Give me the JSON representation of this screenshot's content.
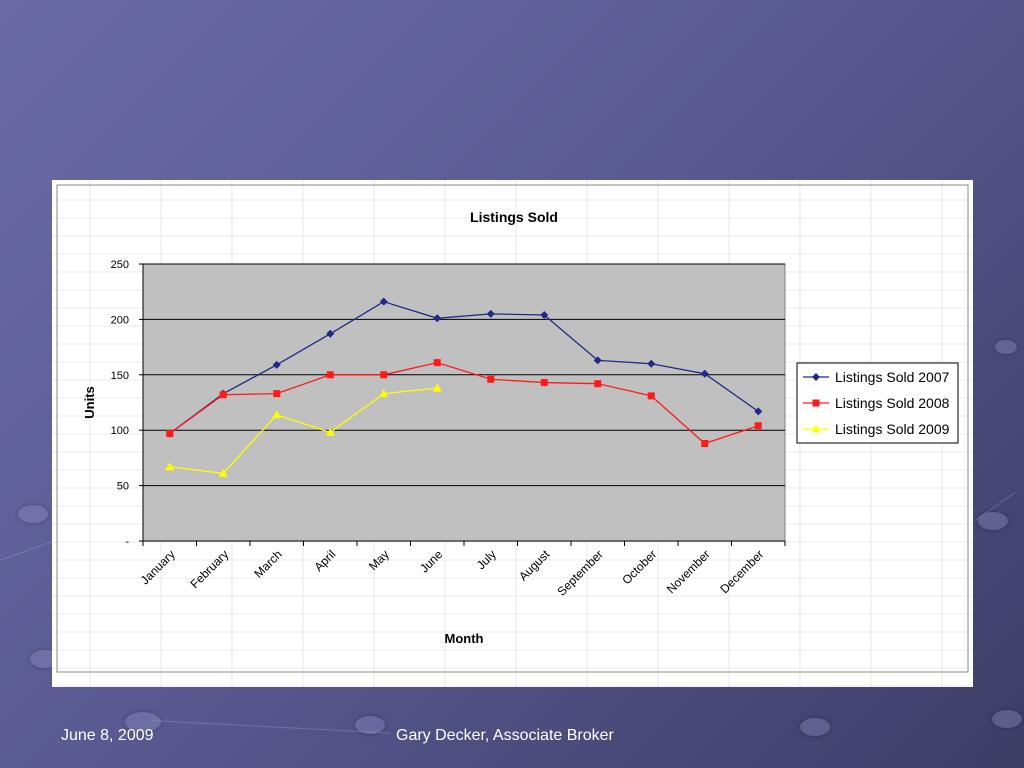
{
  "footer": {
    "date": "June 8, 2009",
    "author": "Gary Decker, Associate Broker"
  },
  "chart_data": {
    "type": "line",
    "title": "Listings Sold",
    "xlabel": "Month",
    "ylabel": "Units",
    "categories": [
      "January",
      "February",
      "March",
      "April",
      "May",
      "June",
      "July",
      "August",
      "September",
      "October",
      "November",
      "December"
    ],
    "ylim": [
      0,
      250
    ],
    "yticks": [
      0,
      50,
      100,
      150,
      200,
      250
    ],
    "ytick_labels": [
      "-",
      "50",
      "100",
      "150",
      "200",
      "250"
    ],
    "grid": true,
    "legend_position": "right",
    "series": [
      {
        "name": "Listings Sold 2007",
        "color": "#1f2a86",
        "marker": "diamond",
        "values": [
          97,
          133,
          159,
          187,
          216,
          201,
          205,
          204,
          163,
          160,
          151,
          117
        ]
      },
      {
        "name": "Listings Sold 2008",
        "color": "#ff1a1a",
        "marker": "square",
        "values": [
          97,
          132,
          133,
          150,
          150,
          161,
          146,
          143,
          142,
          131,
          88,
          104
        ]
      },
      {
        "name": "Listings Sold 2009",
        "color": "#ffff00",
        "marker": "triangle",
        "values": [
          67,
          61,
          114,
          98,
          133,
          138,
          null,
          null,
          null,
          null,
          null,
          null
        ]
      }
    ]
  }
}
